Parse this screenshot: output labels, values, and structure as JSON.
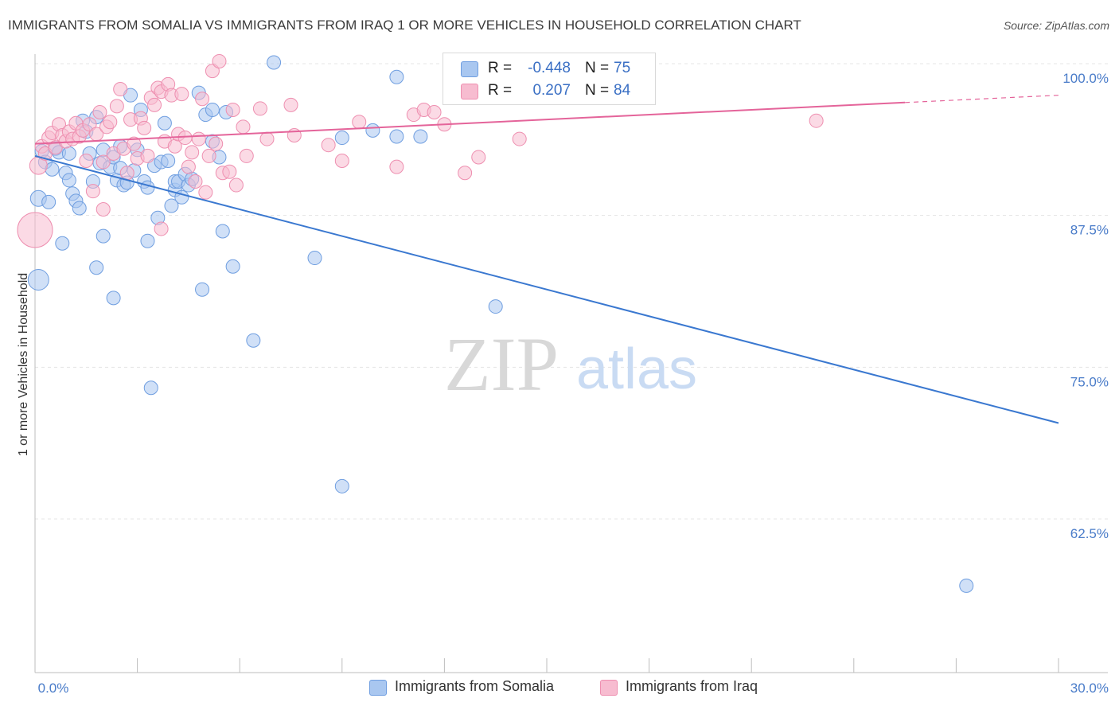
{
  "header": {
    "title": "IMMIGRANTS FROM SOMALIA VS IMMIGRANTS FROM IRAQ 1 OR MORE VEHICLES IN HOUSEHOLD CORRELATION CHART",
    "source": "Source: ZipAtlas.com"
  },
  "watermark": {
    "zip": "ZIP",
    "atlas": "atlas"
  },
  "legend": {
    "rows": [
      {
        "r_label": "R =",
        "r_value": "-0.448",
        "n_label": "N =",
        "n_value": "75",
        "color": "#a9c7f0",
        "border": "#6f9ee0"
      },
      {
        "r_label": "R =",
        "r_value": "0.207",
        "n_label": "N =",
        "n_value": "84",
        "color": "#f7bcd0",
        "border": "#ee8fb0"
      }
    ]
  },
  "bottom_legend": [
    {
      "label": "Immigrants from Somalia",
      "color": "#a9c7f0",
      "border": "#6f9ee0"
    },
    {
      "label": "Immigrants from Iraq",
      "color": "#f7bcd0",
      "border": "#ee8fb0"
    }
  ],
  "chart_data": {
    "type": "scatter",
    "title": "IMMIGRANTS FROM SOMALIA VS IMMIGRANTS FROM IRAQ 1 OR MORE VEHICLES IN HOUSEHOLD CORRELATION CHART",
    "xlabel": "",
    "ylabel": "1 or more Vehicles in Household",
    "xlim": [
      0,
      30
    ],
    "ylim": [
      52.5,
      101.5
    ],
    "x_tick_labels": [
      {
        "value": 0,
        "label": "0.0%"
      },
      {
        "value": 30,
        "label": "30.0%"
      }
    ],
    "y_ticks": [
      {
        "value": 100,
        "label": "100.0%"
      },
      {
        "value": 87.5,
        "label": "87.5%"
      },
      {
        "value": 75,
        "label": "75.0%"
      },
      {
        "value": 62.5,
        "label": "62.5%"
      }
    ],
    "grid": true,
    "legend_position": "top-center",
    "series": [
      {
        "name": "Immigrants from Somalia",
        "color": "#6f9ee0",
        "fill": "#a9c7f0",
        "trend": {
          "x": [
            0,
            30
          ],
          "y": [
            92.4,
            70.4
          ],
          "color": "#3a78d0",
          "dashed_from": null
        },
        "points": [
          [
            0.1,
            88.9
          ],
          [
            0.1,
            82.2
          ],
          [
            0.2,
            92.8
          ],
          [
            0.3,
            91.9
          ],
          [
            0.4,
            88.6
          ],
          [
            0.5,
            91.3
          ],
          [
            0.6,
            93.0
          ],
          [
            0.7,
            92.7
          ],
          [
            0.8,
            85.2
          ],
          [
            0.9,
            91.0
          ],
          [
            1.0,
            92.6
          ],
          [
            1.0,
            90.4
          ],
          [
            1.1,
            89.3
          ],
          [
            1.2,
            88.7
          ],
          [
            1.3,
            88.1
          ],
          [
            1.4,
            95.3
          ],
          [
            1.5,
            94.4
          ],
          [
            1.6,
            92.6
          ],
          [
            1.7,
            90.3
          ],
          [
            1.8,
            95.6
          ],
          [
            1.8,
            83.2
          ],
          [
            1.9,
            91.8
          ],
          [
            2.0,
            92.9
          ],
          [
            2.0,
            85.8
          ],
          [
            2.2,
            91.5
          ],
          [
            2.3,
            92.3
          ],
          [
            2.3,
            80.7
          ],
          [
            2.4,
            90.4
          ],
          [
            2.5,
            93.2
          ],
          [
            2.5,
            91.4
          ],
          [
            2.6,
            90.0
          ],
          [
            2.7,
            90.2
          ],
          [
            2.8,
            97.4
          ],
          [
            2.9,
            91.2
          ],
          [
            3.0,
            92.9
          ],
          [
            3.1,
            96.2
          ],
          [
            3.2,
            90.3
          ],
          [
            3.3,
            89.8
          ],
          [
            3.3,
            85.4
          ],
          [
            3.4,
            73.3
          ],
          [
            3.5,
            91.6
          ],
          [
            3.6,
            87.3
          ],
          [
            3.7,
            91.9
          ],
          [
            3.8,
            95.1
          ],
          [
            3.9,
            92.0
          ],
          [
            4.0,
            88.3
          ],
          [
            4.1,
            89.6
          ],
          [
            4.1,
            90.3
          ],
          [
            4.2,
            90.3
          ],
          [
            4.3,
            89.0
          ],
          [
            4.4,
            90.9
          ],
          [
            4.5,
            90.0
          ],
          [
            4.6,
            90.5
          ],
          [
            4.8,
            97.6
          ],
          [
            4.9,
            81.4
          ],
          [
            5.0,
            95.8
          ],
          [
            5.2,
            93.6
          ],
          [
            5.4,
            92.3
          ],
          [
            5.2,
            96.2
          ],
          [
            5.6,
            96.0
          ],
          [
            5.5,
            86.2
          ],
          [
            5.8,
            83.3
          ],
          [
            6.4,
            77.2
          ],
          [
            7.0,
            100.1
          ],
          [
            8.2,
            84.0
          ],
          [
            9.0,
            93.9
          ],
          [
            9.0,
            65.2
          ],
          [
            9.9,
            94.5
          ],
          [
            10.6,
            94.0
          ],
          [
            10.6,
            98.9
          ],
          [
            11.3,
            94.0
          ],
          [
            13.5,
            80.0
          ],
          [
            27.3,
            57.0
          ]
        ],
        "sizes_note": "larger markers at x=0 (88.9, 82.2)"
      },
      {
        "name": "Immigrants from Iraq",
        "color": "#ee8fb0",
        "fill": "#f7bcd0",
        "trend": {
          "x": [
            0,
            25.5
          ],
          "y": [
            93.4,
            96.8
          ],
          "color": "#e4649a",
          "dashed_from": 25.5,
          "dashed_to": 30,
          "dashed_y": [
            96.8,
            97.4
          ]
        },
        "points": [
          [
            0.0,
            86.3
          ],
          [
            0.1,
            91.6
          ],
          [
            0.2,
            93.2
          ],
          [
            0.3,
            92.6
          ],
          [
            0.4,
            93.9
          ],
          [
            0.5,
            94.3
          ],
          [
            0.6,
            93.1
          ],
          [
            0.7,
            95.0
          ],
          [
            0.8,
            94.1
          ],
          [
            0.9,
            93.6
          ],
          [
            1.0,
            94.4
          ],
          [
            1.1,
            93.8
          ],
          [
            1.2,
            95.1
          ],
          [
            1.3,
            94.0
          ],
          [
            1.4,
            94.5
          ],
          [
            1.5,
            92.0
          ],
          [
            1.6,
            95.0
          ],
          [
            1.7,
            89.5
          ],
          [
            1.8,
            94.2
          ],
          [
            1.9,
            96.0
          ],
          [
            2.0,
            91.9
          ],
          [
            2.0,
            88.0
          ],
          [
            2.1,
            94.8
          ],
          [
            2.2,
            95.2
          ],
          [
            2.3,
            92.6
          ],
          [
            2.4,
            96.5
          ],
          [
            2.5,
            97.9
          ],
          [
            2.6,
            93.0
          ],
          [
            2.7,
            91.0
          ],
          [
            2.8,
            95.4
          ],
          [
            2.9,
            93.4
          ],
          [
            3.0,
            92.2
          ],
          [
            3.1,
            95.5
          ],
          [
            3.2,
            94.7
          ],
          [
            3.3,
            92.4
          ],
          [
            3.4,
            97.2
          ],
          [
            3.5,
            96.6
          ],
          [
            3.6,
            98.0
          ],
          [
            3.7,
            97.7
          ],
          [
            3.7,
            86.4
          ],
          [
            3.8,
            93.6
          ],
          [
            3.9,
            98.3
          ],
          [
            4.0,
            97.4
          ],
          [
            4.1,
            93.2
          ],
          [
            4.2,
            94.2
          ],
          [
            4.3,
            97.5
          ],
          [
            4.4,
            93.9
          ],
          [
            4.5,
            91.5
          ],
          [
            4.6,
            92.7
          ],
          [
            4.7,
            90.3
          ],
          [
            4.8,
            93.8
          ],
          [
            4.9,
            97.1
          ],
          [
            5.0,
            89.4
          ],
          [
            5.1,
            92.4
          ],
          [
            5.2,
            99.4
          ],
          [
            5.3,
            93.4
          ],
          [
            5.4,
            100.2
          ],
          [
            5.5,
            91.0
          ],
          [
            5.7,
            91.1
          ],
          [
            5.8,
            96.2
          ],
          [
            5.9,
            90.0
          ],
          [
            6.1,
            94.8
          ],
          [
            6.2,
            92.4
          ],
          [
            6.6,
            96.3
          ],
          [
            6.8,
            93.8
          ],
          [
            7.5,
            96.6
          ],
          [
            7.6,
            94.1
          ],
          [
            8.6,
            93.3
          ],
          [
            9.0,
            92.0
          ],
          [
            9.5,
            95.2
          ],
          [
            10.6,
            91.5
          ],
          [
            11.1,
            95.8
          ],
          [
            11.4,
            96.2
          ],
          [
            11.7,
            96.0
          ],
          [
            12.0,
            95.0
          ],
          [
            12.6,
            91.0
          ],
          [
            13.0,
            92.3
          ],
          [
            14.2,
            93.8
          ],
          [
            14.0,
            100.1
          ],
          [
            14.3,
            99.6
          ],
          [
            22.9,
            95.3
          ]
        ],
        "sizes_note": "larger marker at x=0 (86.3)"
      }
    ]
  }
}
